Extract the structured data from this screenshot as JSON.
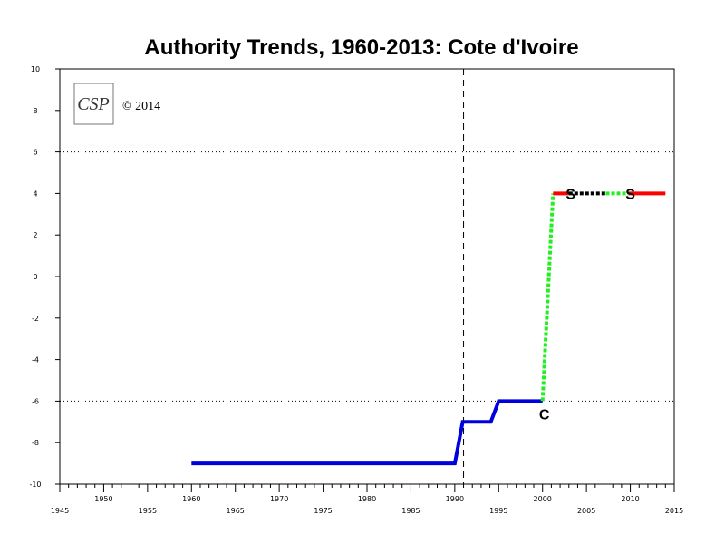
{
  "chart_data": {
    "type": "line",
    "title": "Authority Trends, 1960-2013: Cote d'Ivoire",
    "copyright": "© 2014",
    "logo": "CSP",
    "xlim": [
      1945,
      2015
    ],
    "ylim": [
      -10,
      10
    ],
    "x_ticks_lower": [
      "1945",
      "1955",
      "1965",
      "1975",
      "1985",
      "1995",
      "2005",
      "2015"
    ],
    "x_ticks_upper": [
      "1950",
      "1960",
      "1970",
      "1980",
      "1990",
      "2000",
      "2010"
    ],
    "y_ticks": [
      "10",
      "8",
      "6",
      "4",
      "2",
      "0",
      "-2",
      "-4",
      "-6",
      "-8",
      "-10"
    ],
    "reference_lines_y": [
      6,
      -6
    ],
    "vertical_marker_x": 1991,
    "series": [
      {
        "color": "#0000dd",
        "style": "solid",
        "x": [
          1960,
          1990,
          1990.9,
          1994.1,
          1995,
          2000
        ],
        "y": [
          -9,
          -9,
          -7,
          -7,
          -6,
          -6
        ]
      },
      {
        "color": "#22ee22",
        "style": "dotted",
        "x": [
          2000,
          2001.2
        ],
        "y": [
          -6,
          4
        ]
      },
      {
        "color": "#ff0000",
        "style": "solid",
        "x": [
          2001.2,
          2003
        ],
        "y": [
          4,
          4
        ]
      },
      {
        "color": "#000000",
        "style": "dotted",
        "x": [
          2003,
          2007.2
        ],
        "y": [
          4,
          4
        ]
      },
      {
        "color": "#22ee22",
        "style": "dotted",
        "x": [
          2007.2,
          2009.8
        ],
        "y": [
          4,
          4
        ]
      },
      {
        "color": "#ff0000",
        "style": "solid",
        "x": [
          2009.8,
          2014
        ],
        "y": [
          4,
          4
        ]
      }
    ],
    "annotations": [
      {
        "text": "C",
        "x": 2000.2,
        "y": -6
      },
      {
        "text": "S",
        "x": 2003.2,
        "y": 4
      },
      {
        "text": "S",
        "x": 2010.0,
        "y": 4
      }
    ]
  }
}
